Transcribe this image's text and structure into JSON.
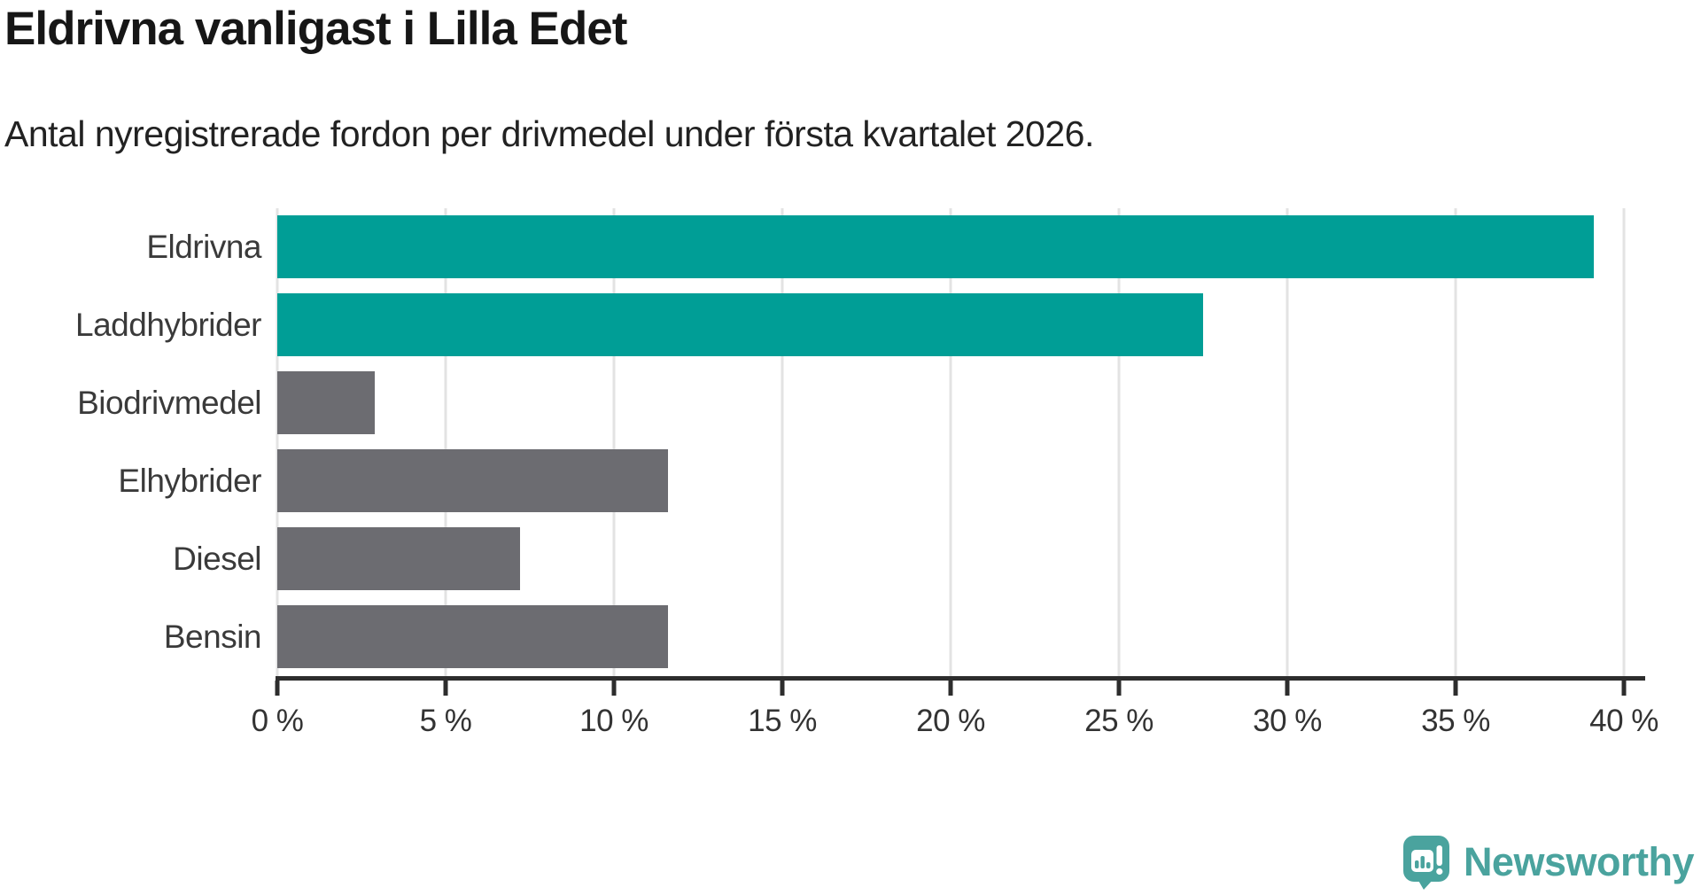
{
  "header": {
    "title": "Eldrivna vanligast i Lilla Edet",
    "subtitle": "Antal nyregistrerade fordon per drivmedel under första kvartalet 2026."
  },
  "chart_data": {
    "type": "bar",
    "orientation": "horizontal",
    "title": "Eldrivna vanligast i Lilla Edet",
    "subtitle": "Antal nyregistrerade fordon per drivmedel under första kvartalet 2026.",
    "categories": [
      "Eldrivna",
      "Laddhybrider",
      "Biodrivmedel",
      "Elhybrider",
      "Diesel",
      "Bensin"
    ],
    "values": [
      39.1,
      27.5,
      2.9,
      11.6,
      7.2,
      11.6
    ],
    "unit": "%",
    "colors": [
      "#009e96",
      "#009e96",
      "#6c6c71",
      "#6c6c71",
      "#6c6c71",
      "#6c6c71"
    ],
    "highlight_color": "#009e96",
    "default_color": "#6c6c71",
    "xlim": [
      0,
      40
    ],
    "xticks": [
      0,
      5,
      10,
      15,
      20,
      25,
      30,
      35,
      40
    ],
    "xtick_suffix": " %",
    "xlabel": "",
    "ylabel": "",
    "grid": true,
    "legend": "none"
  },
  "style": {
    "gridline_color": "#e3e3e3",
    "axis_color": "#2d2d2d",
    "label_color": "#3a3a3a"
  },
  "footer": {
    "brand": "Newsworthy",
    "brand_color": "#4aa39e",
    "logo_icon": "bar-chart-speech-bubble"
  }
}
